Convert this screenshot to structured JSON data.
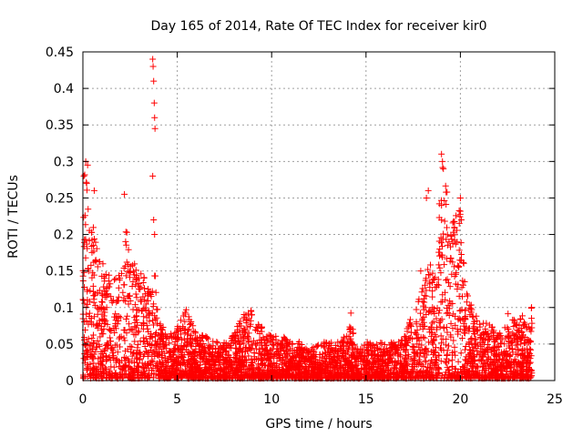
{
  "chart_data": {
    "type": "scatter",
    "title": "Day 165 of 2014, Rate Of TEC Index for receiver kir0",
    "xlabel": "GPS time / hours",
    "ylabel": "ROTI / TECUs",
    "xlim": [
      0,
      25
    ],
    "ylim": [
      0,
      0.45
    ],
    "grid": true,
    "xticks": [
      "0",
      "5",
      "10",
      "15",
      "20",
      "25"
    ],
    "yticks": [
      "0",
      "0.05",
      "0.1",
      "0.15",
      "0.2",
      "0.25",
      "0.3",
      "0.35",
      "0.4",
      "0.45"
    ],
    "marker": "+",
    "color": "#ff0000",
    "envelope": {
      "description": "approximate upper envelope of dense ROTI point cloud (hour, ROTI)",
      "x": [
        0,
        0.1,
        0.2,
        0.3,
        0.5,
        0.8,
        1.0,
        1.5,
        2.0,
        2.3,
        2.6,
        3.0,
        3.3,
        3.6,
        3.8,
        4.0,
        4.5,
        5.0,
        5.5,
        6.0,
        6.5,
        7.0,
        7.5,
        8.0,
        8.5,
        9.0,
        9.5,
        10.0,
        10.5,
        11.0,
        11.5,
        12.0,
        12.5,
        13.0,
        13.5,
        14.0,
        14.2,
        14.5,
        15.0,
        15.5,
        16.0,
        16.5,
        17.0,
        17.5,
        18.0,
        18.5,
        18.8,
        19.0,
        19.2,
        19.5,
        20.0,
        20.3,
        20.6,
        21.0,
        21.5,
        22.0,
        22.5,
        23.0,
        23.5,
        23.8
      ],
      "y": [
        0.2,
        0.29,
        0.3,
        0.25,
        0.22,
        0.18,
        0.16,
        0.14,
        0.15,
        0.21,
        0.18,
        0.15,
        0.14,
        0.12,
        0.16,
        0.08,
        0.06,
        0.07,
        0.1,
        0.06,
        0.06,
        0.05,
        0.05,
        0.06,
        0.09,
        0.1,
        0.07,
        0.06,
        0.06,
        0.05,
        0.05,
        0.04,
        0.05,
        0.05,
        0.05,
        0.06,
        0.09,
        0.04,
        0.05,
        0.05,
        0.05,
        0.05,
        0.06,
        0.09,
        0.13,
        0.17,
        0.2,
        0.3,
        0.28,
        0.21,
        0.24,
        0.12,
        0.1,
        0.08,
        0.08,
        0.06,
        0.09,
        0.08,
        0.09,
        0.1
      ]
    },
    "outliers": {
      "description": "visible isolated high points",
      "x": [
        0.05,
        0.15,
        0.25,
        0.6,
        2.2,
        3.7,
        3.72,
        3.75,
        3.78,
        3.8,
        3.82,
        3.7,
        3.75,
        3.8,
        19.0,
        19.05,
        19.1,
        20.0,
        20.05,
        18.2,
        18.3,
        17.9
      ],
      "y": [
        0.28,
        0.3,
        0.295,
        0.26,
        0.255,
        0.44,
        0.43,
        0.41,
        0.38,
        0.36,
        0.345,
        0.28,
        0.22,
        0.2,
        0.31,
        0.3,
        0.29,
        0.25,
        0.22,
        0.25,
        0.26,
        0.15
      ]
    }
  }
}
